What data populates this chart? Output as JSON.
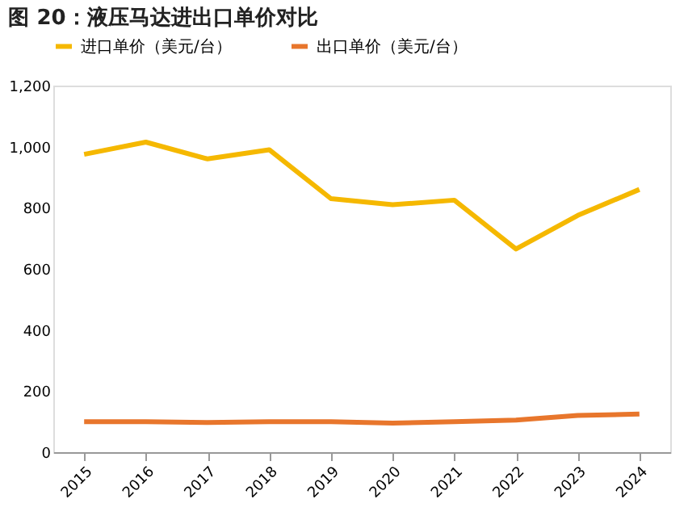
{
  "chart_data": {
    "type": "line",
    "title": "图 20：液压马达进出口单价对比",
    "categories": [
      "2015",
      "2016",
      "2017",
      "2018",
      "2019",
      "2020",
      "2021",
      "2022",
      "2023",
      "2024"
    ],
    "series": [
      {
        "name": "进口单价（美元/台）",
        "color": "#f5b800",
        "values": [
          975,
          1015,
          960,
          990,
          830,
          810,
          825,
          665,
          775,
          860
        ]
      },
      {
        "name": "出口单价（美元/台）",
        "color": "#e8762c",
        "values": [
          100,
          100,
          97,
          100,
          100,
          95,
          100,
          105,
          120,
          125
        ]
      }
    ],
    "ylim": [
      0,
      1200
    ],
    "yticks": [
      0,
      200,
      400,
      600,
      800,
      {
        "value": 1000,
        "label": "1,000"
      },
      {
        "value": 1200,
        "label": "1,200"
      }
    ],
    "legend": "top",
    "grid": false,
    "marker": "none",
    "line_style": "solid"
  }
}
